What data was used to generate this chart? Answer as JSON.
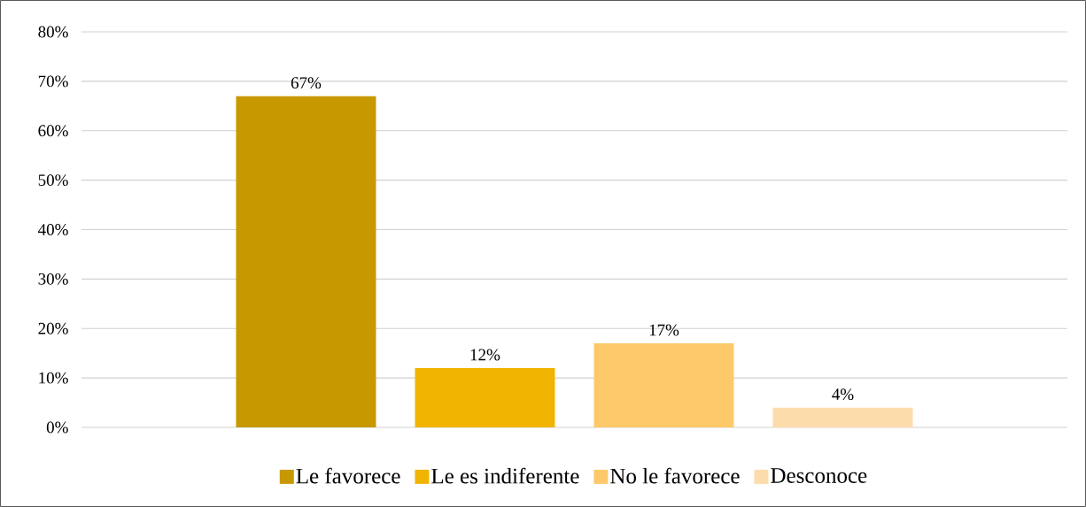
{
  "chart_data": {
    "type": "bar",
    "categories": [
      null
    ],
    "series": [
      {
        "name": "Le favorece",
        "color": "#c89800",
        "values": [
          67
        ],
        "value_labels": [
          "67%"
        ]
      },
      {
        "name": "Le es indiferente",
        "color": "#f0b400",
        "values": [
          12
        ],
        "value_labels": [
          "12%"
        ]
      },
      {
        "name": "No le favorece",
        "color": "#fdc96a",
        "values": [
          17
        ],
        "value_labels": [
          "17%"
        ]
      },
      {
        "name": "Desconoce",
        "color": "#fddcab",
        "values": [
          4
        ],
        "value_labels": [
          "4%"
        ]
      }
    ],
    "ylim": [
      0,
      80
    ],
    "yticks": [
      {
        "value": 0,
        "label": "0%"
      },
      {
        "value": 10,
        "label": "10%"
      },
      {
        "value": 20,
        "label": "20%"
      },
      {
        "value": 30,
        "label": "30%"
      },
      {
        "value": 40,
        "label": "40%"
      },
      {
        "value": 50,
        "label": "50%"
      },
      {
        "value": 60,
        "label": "60%"
      },
      {
        "value": 70,
        "label": "70%"
      },
      {
        "value": 80,
        "label": "80%"
      }
    ],
    "grid": "y",
    "legend": "bottom"
  }
}
